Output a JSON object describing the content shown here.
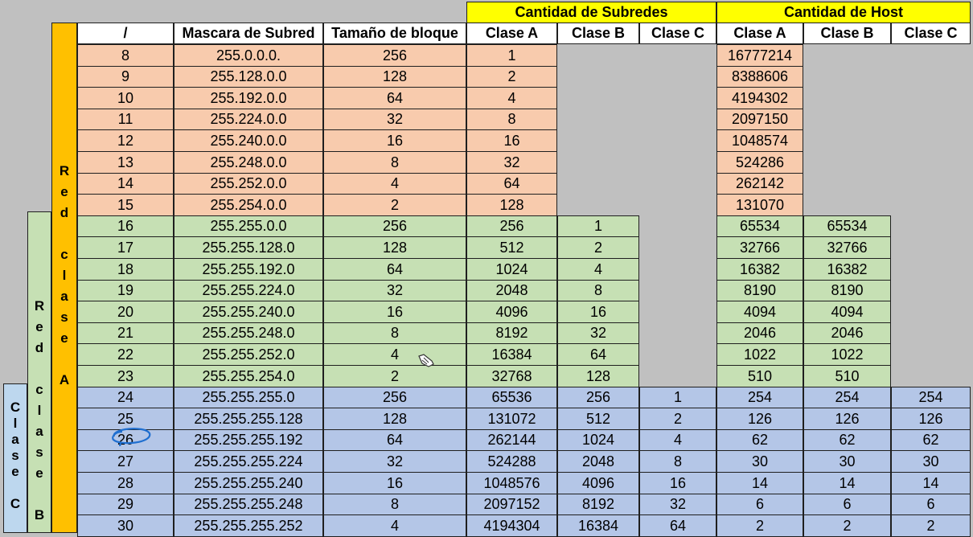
{
  "headers": {
    "subredes_group": "Cantidad de Subredes",
    "host_group": "Cantidad de Host",
    "slash": "/",
    "mascara": "Mascara de Subred",
    "tamano": "Tamaño de bloque",
    "sub_a": "Clase A",
    "sub_b": "Clase B",
    "sub_c": "Clase C",
    "host_a": "Clase A",
    "host_b": "Clase B",
    "host_c": "Clase C"
  },
  "side_labels": {
    "red_clase_a": [
      "R",
      "e",
      "d",
      "",
      "c",
      "l",
      "a",
      "s",
      "e",
      "",
      "A"
    ],
    "red_clase_b": [
      "R",
      "e",
      "d",
      "",
      "c",
      "l",
      "a",
      "s",
      "e",
      "",
      "B"
    ],
    "clase_c": [
      "C",
      "l",
      "a",
      "s",
      "e",
      "",
      "C"
    ]
  },
  "rows": [
    {
      "prefix": "8",
      "mask": "255.0.0.0.",
      "block": "256",
      "sub_a": "1",
      "sub_b": "",
      "sub_c": "",
      "host_a": "16777214",
      "host_b": "",
      "host_c": ""
    },
    {
      "prefix": "9",
      "mask": "255.128.0.0",
      "block": "128",
      "sub_a": "2",
      "sub_b": "",
      "sub_c": "",
      "host_a": "8388606",
      "host_b": "",
      "host_c": ""
    },
    {
      "prefix": "10",
      "mask": "255.192.0.0",
      "block": "64",
      "sub_a": "4",
      "sub_b": "",
      "sub_c": "",
      "host_a": "4194302",
      "host_b": "",
      "host_c": ""
    },
    {
      "prefix": "11",
      "mask": "255.224.0.0",
      "block": "32",
      "sub_a": "8",
      "sub_b": "",
      "sub_c": "",
      "host_a": "2097150",
      "host_b": "",
      "host_c": ""
    },
    {
      "prefix": "12",
      "mask": "255.240.0.0",
      "block": "16",
      "sub_a": "16",
      "sub_b": "",
      "sub_c": "",
      "host_a": "1048574",
      "host_b": "",
      "host_c": ""
    },
    {
      "prefix": "13",
      "mask": "255.248.0.0",
      "block": "8",
      "sub_a": "32",
      "sub_b": "",
      "sub_c": "",
      "host_a": "524286",
      "host_b": "",
      "host_c": ""
    },
    {
      "prefix": "14",
      "mask": "255.252.0.0",
      "block": "4",
      "sub_a": "64",
      "sub_b": "",
      "sub_c": "",
      "host_a": "262142",
      "host_b": "",
      "host_c": ""
    },
    {
      "prefix": "15",
      "mask": "255.254.0.0",
      "block": "2",
      "sub_a": "128",
      "sub_b": "",
      "sub_c": "",
      "host_a": "131070",
      "host_b": "",
      "host_c": ""
    },
    {
      "prefix": "16",
      "mask": "255.255.0.0",
      "block": "256",
      "sub_a": "256",
      "sub_b": "1",
      "sub_c": "",
      "host_a": "65534",
      "host_b": "65534",
      "host_c": ""
    },
    {
      "prefix": "17",
      "mask": "255.255.128.0",
      "block": "128",
      "sub_a": "512",
      "sub_b": "2",
      "sub_c": "",
      "host_a": "32766",
      "host_b": "32766",
      "host_c": ""
    },
    {
      "prefix": "18",
      "mask": "255.255.192.0",
      "block": "64",
      "sub_a": "1024",
      "sub_b": "4",
      "sub_c": "",
      "host_a": "16382",
      "host_b": "16382",
      "host_c": ""
    },
    {
      "prefix": "19",
      "mask": "255.255.224.0",
      "block": "32",
      "sub_a": "2048",
      "sub_b": "8",
      "sub_c": "",
      "host_a": "8190",
      "host_b": "8190",
      "host_c": ""
    },
    {
      "prefix": "20",
      "mask": "255.255.240.0",
      "block": "16",
      "sub_a": "4096",
      "sub_b": "16",
      "sub_c": "",
      "host_a": "4094",
      "host_b": "4094",
      "host_c": ""
    },
    {
      "prefix": "21",
      "mask": "255.255.248.0",
      "block": "8",
      "sub_a": "8192",
      "sub_b": "32",
      "sub_c": "",
      "host_a": "2046",
      "host_b": "2046",
      "host_c": ""
    },
    {
      "prefix": "22",
      "mask": "255.255.252.0",
      "block": "4",
      "sub_a": "16384",
      "sub_b": "64",
      "sub_c": "",
      "host_a": "1022",
      "host_b": "1022",
      "host_c": ""
    },
    {
      "prefix": "23",
      "mask": "255.255.254.0",
      "block": "2",
      "sub_a": "32768",
      "sub_b": "128",
      "sub_c": "",
      "host_a": "510",
      "host_b": "510",
      "host_c": ""
    },
    {
      "prefix": "24",
      "mask": "255.255.255.0",
      "block": "256",
      "sub_a": "65536",
      "sub_b": "256",
      "sub_c": "1",
      "host_a": "254",
      "host_b": "254",
      "host_c": "254"
    },
    {
      "prefix": "25",
      "mask": "255.255.255.128",
      "block": "128",
      "sub_a": "131072",
      "sub_b": "512",
      "sub_c": "2",
      "host_a": "126",
      "host_b": "126",
      "host_c": "126"
    },
    {
      "prefix": "26",
      "mask": "255.255.255.192",
      "block": "64",
      "sub_a": "262144",
      "sub_b": "1024",
      "sub_c": "4",
      "host_a": "62",
      "host_b": "62",
      "host_c": "62"
    },
    {
      "prefix": "27",
      "mask": "255.255.255.224",
      "block": "32",
      "sub_a": "524288",
      "sub_b": "2048",
      "sub_c": "8",
      "host_a": "30",
      "host_b": "30",
      "host_c": "30"
    },
    {
      "prefix": "28",
      "mask": "255.255.255.240",
      "block": "16",
      "sub_a": "1048576",
      "sub_b": "4096",
      "sub_c": "16",
      "host_a": "14",
      "host_b": "14",
      "host_c": "14"
    },
    {
      "prefix": "29",
      "mask": "255.255.255.248",
      "block": "8",
      "sub_a": "2097152",
      "sub_b": "8192",
      "sub_c": "32",
      "host_a": "6",
      "host_b": "6",
      "host_c": "6"
    },
    {
      "prefix": "30",
      "mask": "255.255.255.252",
      "block": "4",
      "sub_a": "4194304",
      "sub_b": "16384",
      "sub_c": "64",
      "host_a": "2",
      "host_b": "2",
      "host_c": "2"
    }
  ],
  "colors": {
    "class_a_rows": "#f8cbad",
    "class_b_rows": "#c6e0b4",
    "class_c_rows": "#b4c6e7",
    "side_a": "#ffc000",
    "side_b": "#c6e0b4",
    "side_c": "#bdd7ee",
    "header_group": "#ffff00",
    "annotation": "#1f6fd0"
  },
  "icons": {
    "annotation": "hand-drawn-circle-icon",
    "cursor": "pointer-cursor-icon"
  }
}
